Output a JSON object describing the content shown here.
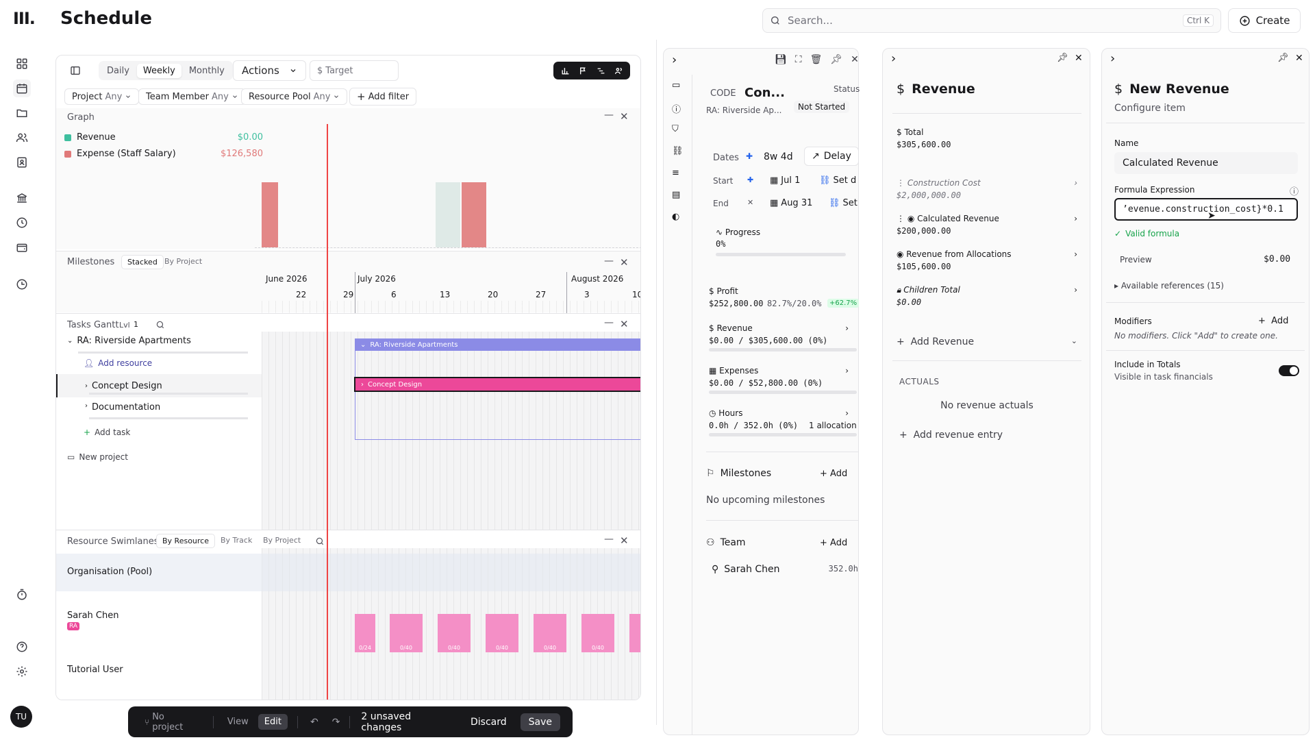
{
  "app": {
    "logo": "III.",
    "title": "Schedule",
    "user_initials": "TU"
  },
  "search": {
    "placeholder": "Search...",
    "shortcut": "Ctrl K"
  },
  "header": {
    "create_label": "Create"
  },
  "toolbar": {
    "views": [
      "Daily",
      "Weekly",
      "Monthly"
    ],
    "active_view": "Weekly",
    "actions_label": "Actions",
    "target_label": "Target"
  },
  "filters": [
    {
      "name": "Project",
      "value": "Any"
    },
    {
      "name": "Team Member",
      "value": "Any"
    },
    {
      "name": "Resource Pool",
      "value": "Any"
    }
  ],
  "add_filter_label": "Add filter",
  "graph": {
    "title": "Graph",
    "legend": [
      {
        "label": "Revenue",
        "value": "$0.00",
        "color": "#3ebf9f"
      },
      {
        "label": "Expense (Staff Salary)",
        "value": "$126,580",
        "color": "#e07a7a"
      }
    ]
  },
  "milestones": {
    "title": "Milestones",
    "modes": [
      "Stacked",
      "By Project"
    ],
    "active_mode": "Stacked",
    "months": [
      "June 2026",
      "July 2026",
      "August 2026"
    ],
    "days": [
      "22",
      "29",
      "6",
      "13",
      "20",
      "27",
      "3",
      "10"
    ]
  },
  "gantt": {
    "title": "Tasks Gantt",
    "level_label": "Lvl",
    "level_value": "1",
    "project": "RA: Riverside Apartments",
    "add_resource": "Add resource",
    "tasks": [
      "Concept Design",
      "Documentation"
    ],
    "add_task": "Add task",
    "new_project": "New project",
    "project_bar": "RA: Riverside Apartments",
    "task_bar": "Concept Design"
  },
  "swimlanes": {
    "title": "Resource Swimlanes",
    "modes": [
      "By Resource",
      "By Track",
      "By Project"
    ],
    "active_mode": "By Resource",
    "rows": [
      {
        "name": "Organisation (Pool)"
      },
      {
        "name": "Sarah Chen",
        "tag": "RA"
      },
      {
        "name": "Tutorial User"
      }
    ],
    "blocks": [
      "0/24",
      "0/40",
      "0/40",
      "0/40",
      "0/40",
      "0/40"
    ]
  },
  "bottom_bar": {
    "project": "No project",
    "view": "View",
    "edit": "Edit",
    "unsaved": "2 unsaved changes",
    "discard": "Discard",
    "save": "Save"
  },
  "task_panel": {
    "code_label": "CODE",
    "code_value": "Con...",
    "subtitle": "RA: Riverside Ap...",
    "status_label": "Status",
    "status_value": "Not Started",
    "dates_label": "Dates",
    "duration": "8w 4d",
    "delay_label": "Delay",
    "start_label": "Start",
    "start_date": "Jul 1",
    "start_dep": "Set depe",
    "end_label": "End",
    "end_date": "Aug 31",
    "end_dep": "Set de",
    "progress_label": "Progress",
    "progress_value": "0%",
    "profit_label": "Profit",
    "profit_value": "$252,800.00",
    "profit_pct": "82.7%/20.0%",
    "profit_delta": "+62.7%",
    "revenue_label": "Revenue",
    "revenue_value": "$0.00 / $305,600.00 (0%)",
    "expenses_label": "Expenses",
    "expenses_value": "$0.00 / $52,800.00 (0%)",
    "hours_label": "Hours",
    "hours_value": "0.0h / 352.0h (0%)",
    "hours_alloc": "1 allocation",
    "milestones_label": "Milestones",
    "milestones_add": "Add",
    "milestones_empty": "No upcoming milestones",
    "team_label": "Team",
    "team_add": "Add",
    "team_member": "Sarah Chen",
    "team_hours": "352.0h"
  },
  "revenue_panel": {
    "title": "Revenue",
    "total_label": "Total",
    "total_value": "$305,600.00",
    "items": [
      {
        "label": "Construction Cost",
        "value": "$2,000,000.00",
        "muted": true
      },
      {
        "label": "Calculated Revenue",
        "value": "$200,000.00",
        "muted": false
      },
      {
        "label": "Revenue from Allocations",
        "value": "$105,600.00",
        "muted": false
      },
      {
        "label": "Children Total",
        "value": "$0.00",
        "muted": false
      }
    ],
    "add_label": "Add Revenue",
    "actuals_label": "ACTUALS",
    "actuals_empty": "No revenue actuals",
    "add_entry": "Add revenue entry"
  },
  "config_panel": {
    "title": "New Revenue",
    "subtitle": "Configure item",
    "name_label": "Name",
    "name_value": "Calculated Revenue",
    "formula_label": "Formula Expression",
    "formula_value": "’evenue.construction_cost}*0.1",
    "valid_label": "Valid formula",
    "preview_label": "Preview",
    "preview_value": "$0.00",
    "refs_label": "Available references (15)",
    "modifiers_label": "Modifiers",
    "modifiers_add": "Add",
    "modifiers_empty": "No modifiers. Click \"Add\" to create one.",
    "include_label": "Include in Totals",
    "include_sub": "Visible in task financials",
    "include_on": true
  }
}
